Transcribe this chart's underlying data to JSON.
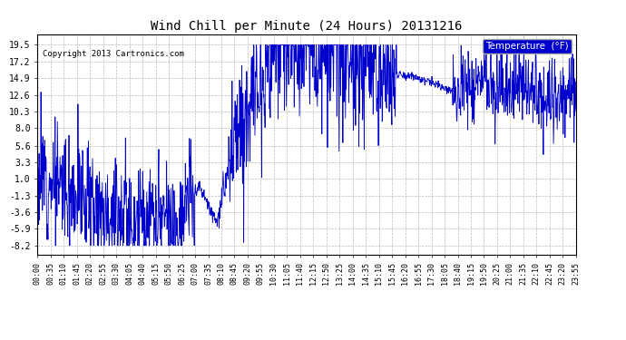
{
  "title": "Wind Chill per Minute (24 Hours) 20131216",
  "copyright_text": "Copyright 2013 Cartronics.com",
  "legend_label": "Temperature  (°F)",
  "background_color": "#ffffff",
  "plot_bg_color": "#ffffff",
  "line_color": "#0000cc",
  "grid_color": "#bbbbbb",
  "yticks": [
    -8.2,
    -5.9,
    -3.6,
    -1.3,
    1.0,
    3.3,
    5.6,
    8.0,
    10.3,
    12.6,
    14.9,
    17.2,
    19.5
  ],
  "ylim": [
    -9.5,
    21.0
  ],
  "xtick_labels": [
    "00:00",
    "00:35",
    "01:10",
    "01:45",
    "02:20",
    "02:55",
    "03:30",
    "04:05",
    "04:40",
    "05:15",
    "05:50",
    "06:25",
    "07:00",
    "07:35",
    "08:10",
    "08:45",
    "09:20",
    "09:55",
    "10:30",
    "11:05",
    "11:40",
    "12:15",
    "12:50",
    "13:25",
    "14:00",
    "14:35",
    "15:10",
    "15:45",
    "16:20",
    "16:55",
    "17:30",
    "18:05",
    "18:40",
    "19:15",
    "19:50",
    "20:25",
    "21:00",
    "21:35",
    "22:10",
    "22:45",
    "23:20",
    "23:55"
  ]
}
